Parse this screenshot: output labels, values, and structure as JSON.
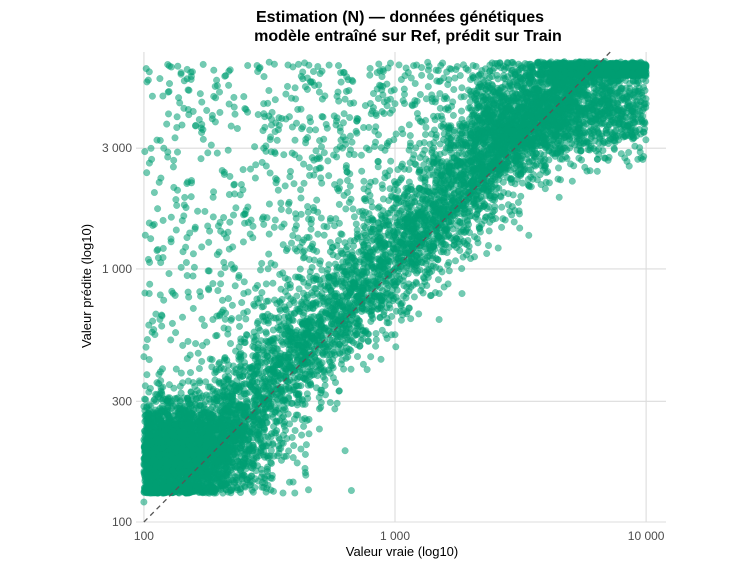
{
  "chart_data": {
    "type": "scatter",
    "title_lines": [
      "Estimation (N) — données génétiques",
      "modèle entraîné sur Ref, prédit sur Train"
    ],
    "xlabel": "Valeur vraie (log10)",
    "ylabel": "Valeur prédite (log10)",
    "x_scale": "log10",
    "y_scale": "log10",
    "xlim": [
      93,
      12000
    ],
    "ylim": [
      100,
      7200
    ],
    "x_ticks": [
      {
        "value": 100,
        "label": "100"
      },
      {
        "value": 1000,
        "label": "1 000"
      },
      {
        "value": 10000,
        "label": "10 000"
      }
    ],
    "y_ticks": [
      {
        "value": 100,
        "label": "100"
      },
      {
        "value": 300,
        "label": "300"
      },
      {
        "value": 1000,
        "label": "1 000"
      },
      {
        "value": 3000,
        "label": "3 000"
      }
    ],
    "grid": true,
    "reference_line": {
      "type": "identity",
      "style": "dashed",
      "color": "#555555"
    },
    "point_color": "#009E73",
    "point_opacity": 0.55,
    "n_points_approx": 10000,
    "series_points": [
      [
        100,
        120
      ],
      [
        110,
        135
      ],
      [
        120,
        150
      ],
      [
        130,
        160
      ],
      [
        140,
        170
      ],
      [
        150,
        185
      ],
      [
        100,
        450
      ],
      [
        105,
        800
      ],
      [
        110,
        1500
      ],
      [
        115,
        2200
      ],
      [
        120,
        3000
      ],
      [
        125,
        5000
      ],
      [
        150,
        5100
      ],
      [
        200,
        5000
      ],
      [
        250,
        4800
      ],
      [
        300,
        4500
      ],
      [
        400,
        5200
      ],
      [
        500,
        5000
      ],
      [
        300,
        3000
      ],
      [
        500,
        2500
      ],
      [
        700,
        3500
      ],
      [
        1000,
        4500
      ],
      [
        1500,
        5500
      ],
      [
        2000,
        5600
      ],
      [
        3000,
        6000
      ],
      [
        5000,
        6200
      ],
      [
        7000,
        6000
      ],
      [
        10000,
        5800
      ],
      [
        10000,
        4500
      ],
      [
        9000,
        3800
      ],
      [
        8000,
        3500
      ],
      [
        6000,
        3000
      ],
      [
        5000,
        2600
      ],
      [
        4000,
        2200
      ],
      [
        3000,
        1700
      ],
      [
        2000,
        1100
      ],
      [
        1500,
        800
      ],
      [
        1000,
        550
      ],
      [
        800,
        450
      ],
      [
        600,
        330
      ],
      [
        500,
        280
      ],
      [
        400,
        230
      ],
      [
        300,
        190
      ],
      [
        250,
        170
      ],
      [
        200,
        155
      ],
      [
        180,
        150
      ],
      [
        160,
        140
      ],
      [
        140,
        135
      ],
      [
        1000,
        1000
      ],
      [
        2000,
        2000
      ],
      [
        3000,
        3000
      ],
      [
        500,
        500
      ],
      [
        300,
        300
      ],
      [
        200,
        200
      ],
      [
        150,
        300
      ],
      [
        200,
        400
      ],
      [
        250,
        800
      ],
      [
        300,
        1500
      ],
      [
        400,
        1200
      ],
      [
        600,
        1800
      ],
      [
        800,
        2200
      ],
      [
        1200,
        2600
      ],
      [
        1600,
        3000
      ],
      [
        2500,
        3800
      ],
      [
        4000,
        4800
      ],
      [
        6000,
        5500
      ]
    ]
  }
}
